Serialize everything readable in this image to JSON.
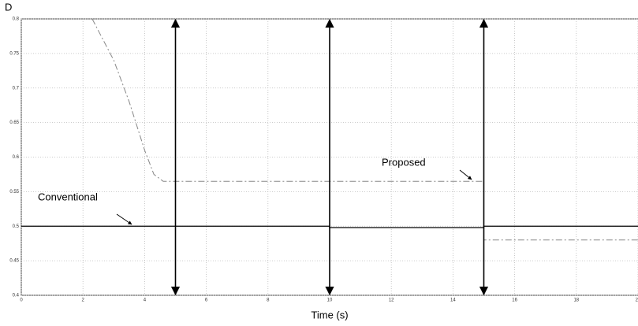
{
  "chart_data": {
    "type": "line",
    "y_label": "D",
    "x_label": "Time (s)",
    "xlim": [
      0,
      20
    ],
    "xticks": [
      0,
      2,
      4,
      6,
      8,
      10,
      12,
      14,
      16,
      18,
      20
    ],
    "ylim": [
      0.4,
      0.8
    ],
    "yticks": [
      0.4,
      0.45,
      0.5,
      0.55,
      0.6,
      0.65,
      0.7,
      0.75,
      0.8
    ],
    "grid": true,
    "series": [
      {
        "name": "Conventional",
        "color": "#000000",
        "style": "solid",
        "x": [
          0,
          10,
          10,
          15,
          15,
          20
        ],
        "values": [
          0.5,
          0.5,
          0.498,
          0.498,
          0.5,
          0.5
        ]
      },
      {
        "name": "Proposed",
        "color": "#888888",
        "style": "dashdot",
        "x": [
          2.3,
          3,
          3.5,
          4,
          4.3,
          4.6,
          15,
          15,
          20
        ],
        "values": [
          0.8,
          0.74,
          0.68,
          0.61,
          0.575,
          0.565,
          0.565,
          0.48,
          0.48
        ]
      }
    ],
    "vertical_arrows_x": [
      5,
      10,
      15
    ]
  }
}
